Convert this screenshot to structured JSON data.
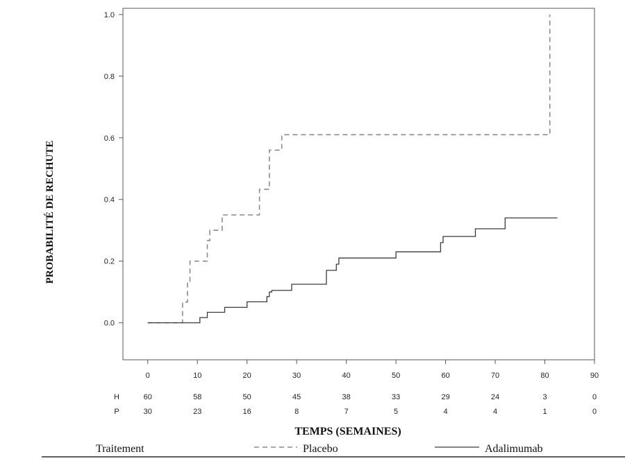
{
  "chart_data": {
    "type": "line",
    "xlabel": "TEMPS (SEMAINES)",
    "ylabel": "PROBABILITÉ DE RECHUTE",
    "xlim": [
      -5,
      90
    ],
    "ylim": [
      -0.12,
      1.02
    ],
    "xticks": [
      0,
      10,
      20,
      30,
      40,
      50,
      60,
      70,
      80,
      90
    ],
    "yticks": [
      0.0,
      0.2,
      0.4,
      0.6,
      0.8,
      1.0
    ],
    "ytick_labels": [
      "0.0",
      "0.2",
      "0.4",
      "0.6",
      "0.8",
      "1.0"
    ],
    "grid": false,
    "series": [
      {
        "name": "Placebo",
        "style": "dashed",
        "color": "#8a8a8a",
        "x": [
          0,
          7,
          8,
          8.5,
          10,
          12,
          12.5,
          13,
          15,
          22,
          22.5,
          24,
          24.5,
          27,
          47,
          81,
          81,
          81
        ],
        "y": [
          0.0,
          0.067,
          0.133,
          0.2,
          0.2,
          0.267,
          0.3,
          0.3,
          0.35,
          0.35,
          0.433,
          0.433,
          0.56,
          0.61,
          0.61,
          0.67,
          0.67,
          1.0
        ]
      },
      {
        "name": "Adalimumab",
        "style": "solid",
        "color": "#3a3a3a",
        "x": [
          0,
          10.5,
          11.5,
          12,
          15.5,
          20,
          24,
          24.5,
          25,
          29,
          36,
          38,
          38.5,
          50,
          59,
          59.5,
          66,
          72,
          82.5
        ],
        "y": [
          0.0,
          0.017,
          0.017,
          0.034,
          0.05,
          0.068,
          0.085,
          0.1,
          0.105,
          0.125,
          0.17,
          0.19,
          0.21,
          0.23,
          0.26,
          0.28,
          0.305,
          0.34,
          0.34
        ]
      }
    ]
  },
  "risk_table": {
    "rows": [
      {
        "label": "H",
        "values": [
          "60",
          "58",
          "50",
          "45",
          "38",
          "33",
          "29",
          "24",
          "3",
          "0"
        ]
      },
      {
        "label": "P",
        "values": [
          "30",
          "23",
          "16",
          "8",
          "7",
          "5",
          "4",
          "4",
          "1",
          "0"
        ]
      }
    ]
  },
  "legend": {
    "title": "Traitement",
    "items": [
      "Placebo",
      "Adalimumab"
    ]
  }
}
